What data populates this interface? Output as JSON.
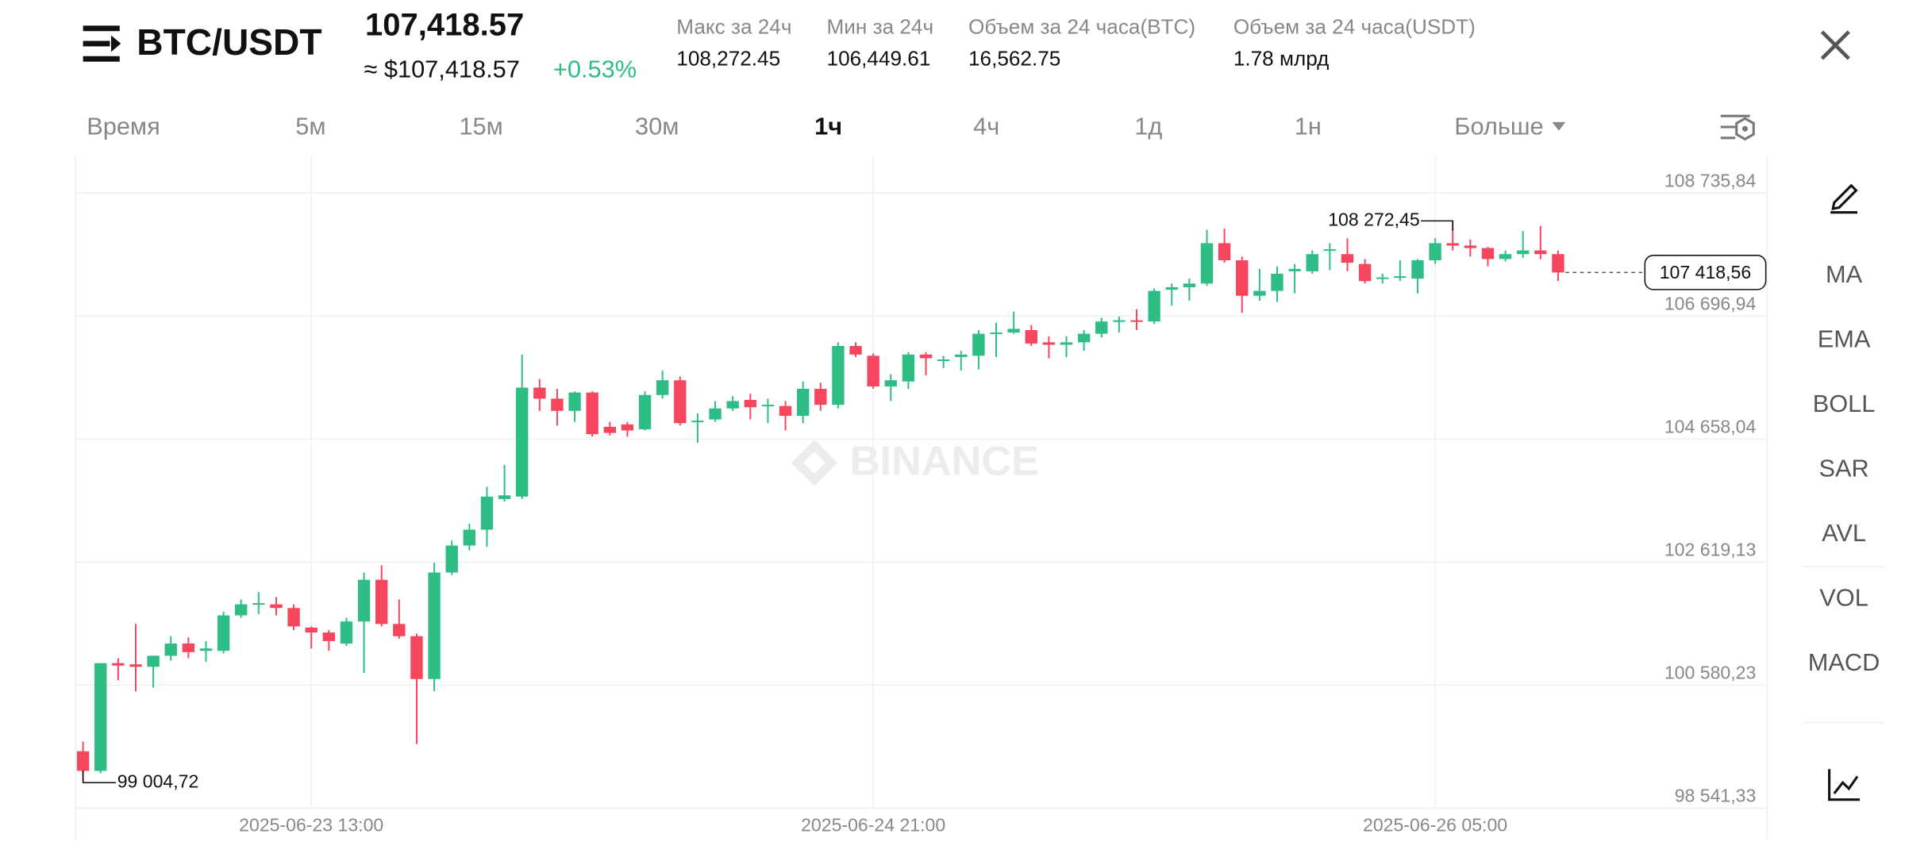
{
  "header": {
    "pair": "BTC/USDT",
    "price": "107,418.57",
    "approx": "≈ $107,418.57",
    "change": "+0.53%",
    "stats": [
      {
        "label": "Макс за 24ч",
        "value": "108,272.45"
      },
      {
        "label": "Мин за 24ч",
        "value": "106,449.61"
      },
      {
        "label": "Объем за 24 часа(BTC)",
        "value": "16,562.75"
      },
      {
        "label": "Объем за 24 часа(USDT)",
        "value": "1.78 млрд"
      }
    ]
  },
  "timeframes": [
    {
      "label": "Время",
      "active": false
    },
    {
      "label": "5м",
      "active": false
    },
    {
      "label": "15м",
      "active": false
    },
    {
      "label": "30м",
      "active": false
    },
    {
      "label": "1ч",
      "active": true
    },
    {
      "label": "4ч",
      "active": false
    },
    {
      "label": "1д",
      "active": false
    },
    {
      "label": "1н",
      "active": false
    },
    {
      "label": "Больше",
      "active": false
    }
  ],
  "indicators": [
    "MA",
    "EMA",
    "BOLL",
    "SAR",
    "AVL",
    "VOL",
    "MACD"
  ],
  "watermark": "BINANCE",
  "chart_data": {
    "type": "candlestick",
    "up_color": "#2ebd85",
    "down_color": "#f6465d",
    "grid": true,
    "categories": [
      null,
      null,
      null,
      null,
      null,
      null,
      null,
      null,
      null,
      null,
      null,
      null,
      null,
      "2025-06-23 13:00",
      null,
      null,
      null,
      null,
      null,
      null,
      null,
      null,
      null,
      null,
      null,
      null,
      null,
      null,
      null,
      null,
      null,
      null,
      null,
      null,
      null,
      null,
      null,
      null,
      null,
      null,
      null,
      null,
      null,
      null,
      null,
      "2025-06-24 21:00",
      null,
      null,
      null,
      null,
      null,
      null,
      null,
      null,
      null,
      null,
      null,
      null,
      null,
      null,
      null,
      null,
      null,
      null,
      null,
      null,
      null,
      null,
      null,
      null,
      null,
      null,
      null,
      null,
      null,
      null,
      null,
      "2025-06-26 05:00",
      null,
      null,
      null,
      null,
      null,
      null,
      null
    ],
    "open": [
      99484,
      99159,
      100945,
      100925,
      100884,
      101067,
      101269,
      101148,
      101148,
      101736,
      101919,
      101919,
      101858,
      101533,
      101452,
      101269,
      101635,
      102325,
      101594,
      101391,
      100681,
      102446,
      102893,
      103156,
      103664,
      103704,
      105510,
      105327,
      105125,
      105429,
      104861,
      104901,
      104820,
      105388,
      105632,
      104942,
      104983,
      105165,
      105307,
      105206,
      105206,
      105043,
      105490,
      105226,
      106200,
      106038,
      105530,
      105612,
      106058,
      105956,
      106017,
      106038,
      106403,
      106423,
      106464,
      106261,
      106220,
      106261,
      106403,
      106606,
      106626,
      106606,
      107133,
      107174,
      107235,
      107904,
      107620,
      107032,
      107113,
      107438,
      107438,
      107783,
      107722,
      107559,
      107316,
      107336,
      107316,
      107620,
      107904,
      107864,
      107823,
      107641,
      107722,
      107783,
      107722
    ],
    "high": [
      99646,
      100945,
      101026,
      101594,
      101067,
      101391,
      101371,
      101310,
      101797,
      102000,
      102122,
      102040,
      101919,
      101554,
      101493,
      101696,
      102446,
      102568,
      102000,
      101432,
      102609,
      102974,
      103258,
      103867,
      104232,
      106058,
      105652,
      105490,
      105449,
      105449,
      104942,
      104942,
      105449,
      105794,
      105693,
      105084,
      105287,
      105368,
      105409,
      105327,
      105287,
      105612,
      105591,
      106261,
      106261,
      106078,
      105733,
      106098,
      106098,
      106038,
      106119,
      106464,
      106585,
      106768,
      106545,
      106362,
      106362,
      106464,
      106667,
      106687,
      106809,
      107154,
      107235,
      107316,
      108127,
      108147,
      107681,
      107478,
      107519,
      107559,
      107783,
      107904,
      107985,
      107641,
      107397,
      107620,
      107641,
      107985,
      108272.45,
      107965,
      107843,
      107783,
      108107,
      108188,
      107783
    ],
    "low": [
      99004.72,
      99119,
      100661,
      100478,
      100539,
      100985,
      101026,
      100965,
      101107,
      101696,
      101756,
      101736,
      101493,
      101188,
      101148,
      101229,
      100782,
      101554,
      101351,
      99606,
      100478,
      102406,
      102811,
      102872,
      103623,
      103664,
      105125,
      104881,
      104942,
      104698,
      104718,
      104698,
      104800,
      105327,
      104881,
      104597,
      104942,
      105125,
      104983,
      104922,
      104800,
      104922,
      105125,
      105165,
      106017,
      105490,
      105287,
      105490,
      105713,
      105835,
      105794,
      105814,
      106017,
      106403,
      106200,
      105997,
      106017,
      106119,
      106342,
      106423,
      106464,
      106565,
      106869,
      106951,
      107194,
      107580,
      106748,
      106951,
      106930,
      107072,
      107397,
      107458,
      107438,
      107235,
      107235,
      107275,
      107072,
      107559,
      107783,
      107681,
      107519,
      107600,
      107661,
      107641,
      107275
    ],
    "close": [
      99159,
      100945,
      100904,
      100884,
      101067,
      101269,
      101127,
      101188,
      101736,
      101919,
      101939,
      101858,
      101554,
      101452,
      101310,
      101635,
      102325,
      101594,
      101391,
      100681,
      102446,
      102893,
      103156,
      103704,
      103725,
      105510,
      105327,
      105125,
      105429,
      104739,
      104759,
      104800,
      105388,
      105632,
      104922,
      104962,
      105165,
      105287,
      105185,
      105226,
      105043,
      105490,
      105226,
      106200,
      106058,
      105530,
      105632,
      106058,
      105997,
      105977,
      106058,
      106403,
      106423,
      106484,
      106241,
      106220,
      106261,
      106403,
      106606,
      106626,
      106606,
      107113,
      107174,
      107235,
      107904,
      107620,
      107032,
      107113,
      107397,
      107478,
      107722,
      107803,
      107580,
      107275,
      107336,
      107356,
      107620,
      107904,
      107864,
      107823,
      107641,
      107722,
      107783,
      107722,
      107418.56
    ],
    "high_label": "108 272,45",
    "low_label": "99 004,72",
    "last_label": "107 418,56",
    "ylim": [
      98541.33,
      109344
    ],
    "yticks": [
      {
        "value": 108735.84,
        "label": "108 735,84"
      },
      {
        "value": 106696.94,
        "label": "106 696,94"
      },
      {
        "value": 104658.04,
        "label": "104 658,04"
      },
      {
        "value": 102619.13,
        "label": "102 619,13"
      },
      {
        "value": 100580.23,
        "label": "100 580,23"
      },
      {
        "value": 98541.33,
        "label": "98 541,33"
      }
    ]
  }
}
